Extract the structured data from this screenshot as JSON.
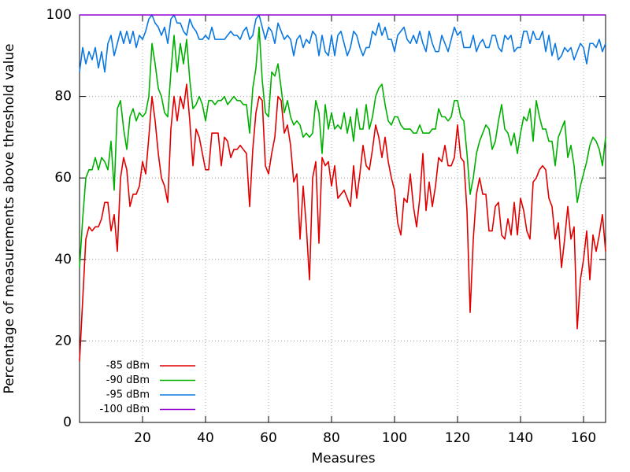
{
  "chart_data": {
    "type": "line",
    "xlabel": "Measures",
    "ylabel": "Percentage of measurements above threshold value",
    "xlim": [
      0,
      167
    ],
    "ylim": [
      0,
      100
    ],
    "xticks": [
      20,
      40,
      60,
      80,
      100,
      120,
      140,
      160
    ],
    "yticks": [
      0,
      20,
      40,
      60,
      80,
      100
    ],
    "grid": true,
    "legend": "lower left",
    "x": [
      0,
      1,
      2,
      3,
      4,
      5,
      6,
      7,
      8,
      9,
      10,
      11,
      12,
      13,
      14,
      15,
      16,
      17,
      18,
      19,
      20,
      21,
      22,
      23,
      24,
      25,
      26,
      27,
      28,
      29,
      30,
      31,
      32,
      33,
      34,
      35,
      36,
      37,
      38,
      39,
      40,
      41,
      42,
      43,
      44,
      45,
      46,
      47,
      48,
      49,
      50,
      51,
      52,
      53,
      54,
      55,
      56,
      57,
      58,
      59,
      60,
      61,
      62,
      63,
      64,
      65,
      66,
      67,
      68,
      69,
      70,
      71,
      72,
      73,
      74,
      75,
      76,
      77,
      78,
      79,
      80,
      81,
      82,
      83,
      84,
      85,
      86,
      87,
      88,
      89,
      90,
      91,
      92,
      93,
      94,
      95,
      96,
      97,
      98,
      99,
      100,
      101,
      102,
      103,
      104,
      105,
      106,
      107,
      108,
      109,
      110,
      111,
      112,
      113,
      114,
      115,
      116,
      117,
      118,
      119,
      120,
      121,
      122,
      123,
      124,
      125,
      126,
      127,
      128,
      129,
      130,
      131,
      132,
      133,
      134,
      135,
      136,
      137,
      138,
      139,
      140,
      141,
      142,
      143,
      144,
      145,
      146,
      147,
      148,
      149,
      150,
      151,
      152,
      153,
      154,
      155,
      156,
      157,
      158,
      159,
      160,
      161,
      162,
      163,
      164,
      165,
      166,
      167
    ],
    "series": [
      {
        "name": "-85 dBm",
        "color": "#e00000",
        "values": [
          15,
          30,
          45,
          48,
          47,
          48,
          48,
          50,
          54,
          54,
          47,
          51,
          42,
          60,
          65,
          62,
          53,
          56,
          56,
          58,
          64,
          61,
          70,
          80,
          74,
          66,
          60,
          58,
          54,
          72,
          80,
          74,
          80,
          77,
          83,
          74,
          63,
          72,
          70,
          66,
          62,
          62,
          71,
          71,
          71,
          63,
          70,
          69,
          65,
          67,
          67,
          68,
          67,
          66,
          53,
          67,
          76,
          80,
          79,
          63,
          61,
          66,
          70,
          80,
          79,
          71,
          73,
          68,
          59,
          61,
          45,
          58,
          48,
          35,
          60,
          64,
          44,
          65,
          63,
          64,
          58,
          63,
          55,
          56,
          57,
          55,
          53,
          63,
          55,
          61,
          68,
          63,
          62,
          67,
          73,
          70,
          65,
          70,
          64,
          60,
          57,
          49,
          46,
          55,
          54,
          61,
          53,
          48,
          55,
          66,
          52,
          59,
          53,
          58,
          65,
          64,
          68,
          63,
          63,
          65,
          73,
          65,
          64,
          52,
          27,
          45,
          56,
          60,
          56,
          56,
          47,
          47,
          53,
          54,
          46,
          45,
          50,
          46,
          54,
          46,
          55,
          52,
          47,
          45,
          59,
          60,
          62,
          63,
          62,
          55,
          53,
          45,
          49,
          38,
          45,
          53,
          45,
          48,
          23,
          35,
          40,
          47,
          35,
          46,
          42,
          46,
          51,
          42
        ]
      },
      {
        "name": "-90 dBm",
        "color": "#00b000",
        "values": [
          38,
          50,
          60,
          62,
          62,
          65,
          62,
          65,
          64,
          62,
          69,
          57,
          77,
          79,
          72,
          67,
          75,
          77,
          74,
          76,
          75,
          76,
          80,
          93,
          88,
          82,
          80,
          76,
          75,
          86,
          95,
          86,
          93,
          88,
          94,
          84,
          77,
          78,
          80,
          78,
          74,
          79,
          79,
          78,
          79,
          79,
          80,
          78,
          79,
          80,
          79,
          79,
          78,
          78,
          71,
          82,
          87,
          97,
          84,
          76,
          75,
          86,
          85,
          88,
          82,
          76,
          79,
          75,
          73,
          74,
          73,
          70,
          71,
          70,
          71,
          79,
          76,
          66,
          78,
          72,
          76,
          72,
          73,
          72,
          76,
          71,
          75,
          69,
          77,
          72,
          72,
          78,
          72,
          75,
          80,
          82,
          83,
          78,
          74,
          73,
          75,
          75,
          73,
          72,
          72,
          72,
          71,
          71,
          73,
          71,
          71,
          71,
          72,
          72,
          77,
          75,
          75,
          74,
          75,
          79,
          79,
          75,
          74,
          66,
          56,
          60,
          66,
          69,
          71,
          73,
          72,
          67,
          69,
          74,
          78,
          72,
          71,
          68,
          71,
          66,
          71,
          75,
          74,
          77,
          69,
          79,
          75,
          72,
          72,
          69,
          69,
          63,
          70,
          72,
          74,
          65,
          68,
          63,
          54,
          58,
          61,
          64,
          68,
          70,
          69,
          67,
          63,
          70
        ]
      },
      {
        "name": "-95 dBm",
        "color": "#0a78e0",
        "values": [
          86,
          92,
          88,
          91,
          89,
          92,
          87,
          91,
          86,
          93,
          95,
          90,
          93,
          96,
          93,
          96,
          93,
          96,
          92,
          95,
          94,
          96,
          99,
          100,
          98,
          97,
          95,
          97,
          93,
          99,
          100,
          98,
          98,
          96,
          95,
          99,
          97,
          96,
          94,
          94,
          95,
          94,
          97,
          94,
          94,
          94,
          94,
          95,
          96,
          95,
          95,
          94,
          96,
          97,
          94,
          95,
          99,
          100,
          97,
          94,
          97,
          96,
          93,
          98,
          96,
          94,
          95,
          94,
          90,
          94,
          95,
          92,
          94,
          93,
          96,
          95,
          90,
          95,
          91,
          90,
          95,
          90,
          95,
          96,
          93,
          90,
          92,
          96,
          95,
          92,
          90,
          92,
          92,
          96,
          95,
          98,
          95,
          97,
          94,
          94,
          91,
          95,
          96,
          97,
          94,
          93,
          95,
          93,
          96,
          93,
          91,
          96,
          93,
          91,
          91,
          95,
          93,
          91,
          94,
          97,
          95,
          96,
          92,
          92,
          92,
          95,
          91,
          93,
          94,
          92,
          92,
          95,
          95,
          92,
          91,
          95,
          94,
          95,
          91,
          92,
          92,
          96,
          96,
          93,
          96,
          94,
          94,
          96,
          91,
          95,
          90,
          93,
          89,
          90,
          92,
          91,
          92,
          89,
          91,
          93,
          92,
          88,
          93,
          93,
          92,
          94,
          91,
          93
        ]
      },
      {
        "name": "-100 dBm",
        "color": "#9400d3",
        "values": [
          100,
          100,
          100,
          100,
          100,
          100,
          100,
          100,
          100,
          100,
          100,
          100,
          100,
          100,
          100,
          100,
          100,
          100,
          100,
          100,
          100,
          100,
          100,
          100,
          100,
          100,
          100,
          100,
          100,
          100,
          100,
          100,
          100,
          100,
          100,
          100,
          100,
          100,
          100,
          100,
          100,
          100,
          100,
          100,
          100,
          100,
          100,
          100,
          100,
          100,
          100,
          100,
          100,
          100,
          100,
          100,
          100,
          100,
          100,
          100,
          100,
          100,
          100,
          100,
          100,
          100,
          100,
          100,
          100,
          100,
          100,
          100,
          100,
          100,
          100,
          100,
          100,
          100,
          100,
          100,
          100,
          100,
          100,
          100,
          100,
          100,
          100,
          100,
          100,
          100,
          100,
          100,
          100,
          100,
          100,
          100,
          100,
          100,
          100,
          100,
          100,
          100,
          100,
          100,
          100,
          100,
          100,
          100,
          100,
          100,
          100,
          100,
          100,
          100,
          100,
          100,
          100,
          100,
          100,
          100,
          100,
          100,
          100,
          100,
          100,
          100,
          100,
          100,
          100,
          100,
          100,
          100,
          100,
          100,
          100,
          100,
          100,
          100,
          100,
          100,
          100,
          100,
          100,
          100,
          100,
          100,
          100,
          100,
          100,
          100,
          100,
          100,
          100,
          100,
          100,
          100,
          100,
          100,
          100,
          100,
          100,
          100,
          100,
          100,
          100,
          100,
          100,
          100
        ]
      }
    ]
  }
}
